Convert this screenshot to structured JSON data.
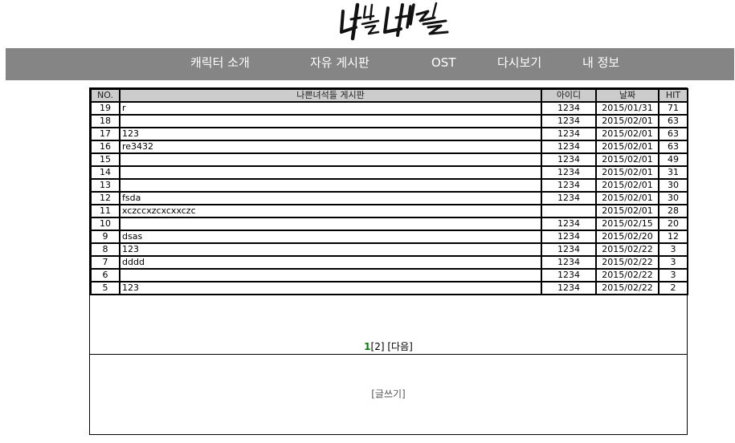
{
  "nav": {
    "items": [
      {
        "label": "캐릭터 소개"
      },
      {
        "label": "자유 게시판"
      },
      {
        "label": "OST"
      },
      {
        "label": "다시보기"
      },
      {
        "label": "내 정보"
      }
    ]
  },
  "board": {
    "headers": {
      "no": "NO.",
      "title": "나쁜녀석들 게시판",
      "id": "아이디",
      "date": "날짜",
      "hit": "HIT"
    },
    "rows": [
      {
        "no": "19",
        "title": "r",
        "id": "1234",
        "date": "2015/01/31",
        "hit": "71"
      },
      {
        "no": "18",
        "title": "",
        "id": "1234",
        "date": "2015/02/01",
        "hit": "63"
      },
      {
        "no": "17",
        "title": "123",
        "id": "1234",
        "date": "2015/02/01",
        "hit": "63"
      },
      {
        "no": "16",
        "title": "re3432",
        "id": "1234",
        "date": "2015/02/01",
        "hit": "63"
      },
      {
        "no": "15",
        "title": "",
        "id": "1234",
        "date": "2015/02/01",
        "hit": "49"
      },
      {
        "no": "14",
        "title": "",
        "id": "1234",
        "date": "2015/02/01",
        "hit": "31"
      },
      {
        "no": "13",
        "title": "",
        "id": "1234",
        "date": "2015/02/01",
        "hit": "30"
      },
      {
        "no": "12",
        "title": "fsda",
        "id": "1234",
        "date": "2015/02/01",
        "hit": "30"
      },
      {
        "no": "11",
        "title": "xczccxzcxcxxczc",
        "id": "",
        "date": "2015/02/01",
        "hit": "28"
      },
      {
        "no": "10",
        "title": "",
        "id": "1234",
        "date": "2015/02/15",
        "hit": "20"
      },
      {
        "no": "9",
        "title": "dsas",
        "id": "1234",
        "date": "2015/02/20",
        "hit": "12"
      },
      {
        "no": "8",
        "title": "123",
        "id": "1234",
        "date": "2015/02/22",
        "hit": "3"
      },
      {
        "no": "7",
        "title": "dddd",
        "id": "1234",
        "date": "2015/02/22",
        "hit": "3"
      },
      {
        "no": "6",
        "title": "",
        "id": "1234",
        "date": "2015/02/22",
        "hit": "3"
      },
      {
        "no": "5",
        "title": "123",
        "id": "1234",
        "date": "2015/02/22",
        "hit": "2"
      }
    ]
  },
  "pager": {
    "current": "1",
    "page2": "[2]",
    "next": "[다음]"
  },
  "write": {
    "label": "[글쓰기]"
  },
  "colors": {
    "navbar": "#858585",
    "header": "#cccccc",
    "current_page": "#0a7a0a"
  }
}
